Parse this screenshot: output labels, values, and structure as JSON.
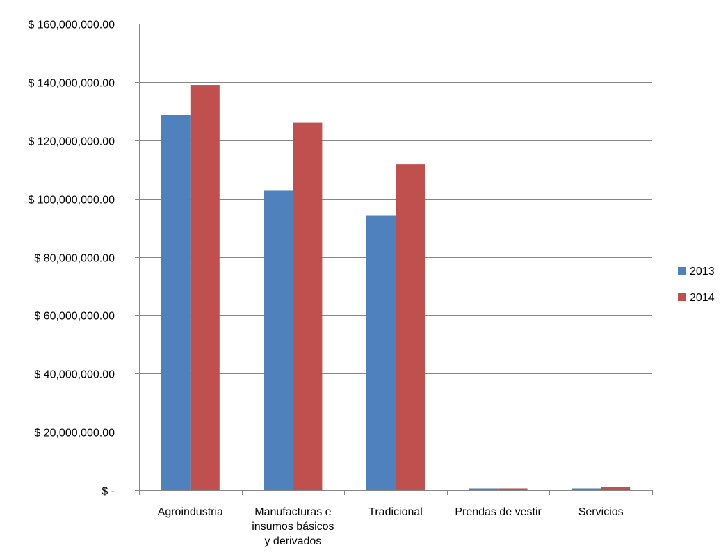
{
  "chart_data": {
    "type": "bar",
    "categories": [
      [
        "Agroindustria"
      ],
      [
        "Manufacturas e",
        "insumos básicos",
        "y derivados"
      ],
      [
        "Tradicional"
      ],
      [
        "Prendas de vestir"
      ],
      [
        "Servicios"
      ]
    ],
    "series": [
      {
        "name": "2013",
        "color": "#4f81bd",
        "values": [
          128600000,
          102900000,
          94300000,
          600000,
          600000
        ]
      },
      {
        "name": "2014",
        "color": "#c0504d",
        "values": [
          139000000,
          126000000,
          111800000,
          600000,
          1000000
        ]
      }
    ],
    "ylim": [
      0,
      160000000
    ],
    "yticks": [
      {
        "value": 0,
        "label": "$ -"
      },
      {
        "value": 20000000,
        "label": "$ 20,000,000.00"
      },
      {
        "value": 40000000,
        "label": "$ 40,000,000.00"
      },
      {
        "value": 60000000,
        "label": "$ 60,000,000.00"
      },
      {
        "value": 80000000,
        "label": "$ 80,000,000.00"
      },
      {
        "value": 100000000,
        "label": "$ 100,000,000.00"
      },
      {
        "value": 120000000,
        "label": "$ 120,000,000.00"
      },
      {
        "value": 140000000,
        "label": "$ 140,000,000.00"
      },
      {
        "value": 160000000,
        "label": "$ 160,000,000.00"
      }
    ],
    "grid": true,
    "legend_position": "right"
  }
}
